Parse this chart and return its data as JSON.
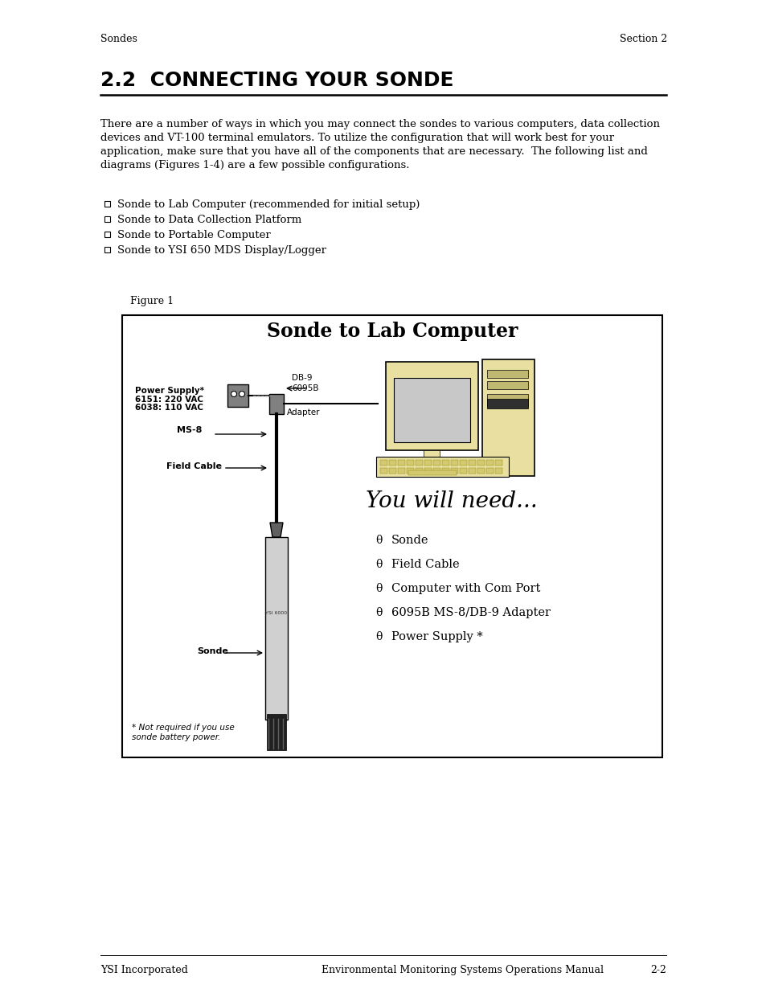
{
  "page_bg": "#ffffff",
  "header_left": "Sondes",
  "header_right": "Section 2",
  "title": "2.2  CONNECTING YOUR SONDE",
  "body_text_lines": [
    "There are a number of ways in which you may connect the sondes to various computers, data collection",
    "devices and VT-100 terminal emulators. To utilize the configuration that will work best for your",
    "application, make sure that you have all of the components that are necessary.  The following list and",
    "diagrams (Figures 1-4) are a few possible configurations."
  ],
  "bullet_items": [
    "Sonde to Lab Computer (recommended for initial setup)",
    "Sonde to Data Collection Platform",
    "Sonde to Portable Computer",
    "Sonde to YSI 650 MDS Display/Logger"
  ],
  "figure_label": "Figure 1",
  "diagram_title": "Sonde to Lab Computer",
  "you_will_need_title": "You will need...",
  "you_will_need_items": [
    "Sonde",
    "Field Cable",
    "Computer with Com Port",
    "6095B MS-8/DB-9 Adapter",
    "Power Supply *"
  ],
  "power_supply_label": "Power Supply*",
  "power_supply_label2": "6151: 220 VAC",
  "power_supply_label3": "6038: 110 VAC",
  "ms8_label": "MS-8",
  "field_cable_label": "Field Cable",
  "db9_label": "DB-9",
  "adapter_6095b_label": "6095B",
  "adapter_label": "Adapter",
  "sonde_label": "Sonde",
  "footnote_line1": "* Not required if you use",
  "footnote_line2": "sonde battery power.",
  "footer_left": "YSI Incorporated",
  "footer_center": "Environmental Monitoring Systems Operations Manual",
  "footer_right": "2-2",
  "computer_color": "#e8dfa0",
  "screen_color": "#c8c8c8",
  "sonde_body_color": "#d0d0d0",
  "sonde_top_color": "#909090",
  "cable_color": "#404040",
  "adapter_color": "#808080",
  "ps_color": "#808080"
}
